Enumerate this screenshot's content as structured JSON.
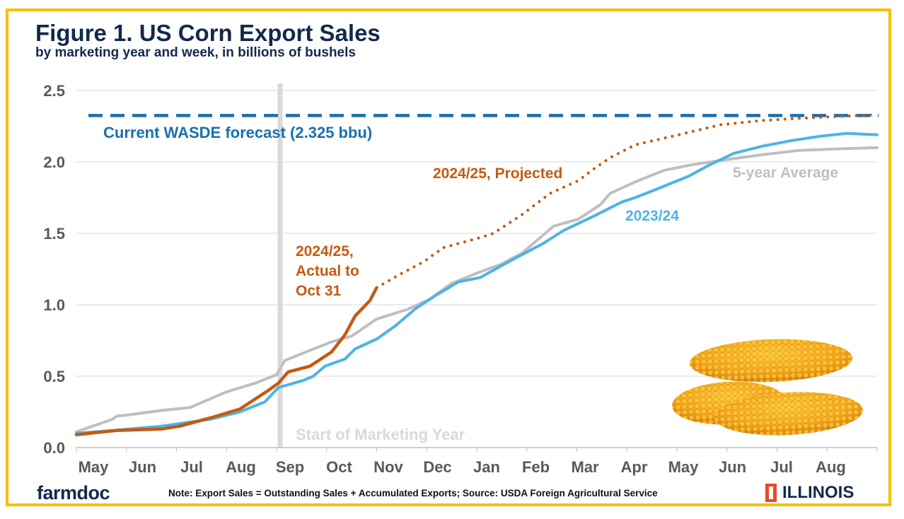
{
  "chart_data": {
    "type": "line",
    "title": "Figure 1. US Corn Export Sales",
    "subtitle": "by marketing year and week, in billions of bushels",
    "ylim": [
      0,
      2.5
    ],
    "yticks": [
      "0.0",
      "0.5",
      "1.0",
      "1.5",
      "2.0",
      "2.5"
    ],
    "xlim": [
      "2024-05-01",
      "2025-08-31"
    ],
    "xticks": [
      "May",
      "Jun",
      "Jul",
      "Aug",
      "Sep",
      "Oct",
      "Nov",
      "Dec",
      "Jan",
      "Feb",
      "Mar",
      "Apr",
      "May",
      "Jun",
      "Jul",
      "Aug"
    ],
    "grid": "horizontal",
    "reference_line": {
      "label": "Current WASDE forecast (2.325 bbu)",
      "value": 2.325,
      "color": "#1a6faf"
    },
    "vertical_marker": {
      "label": "Start of Marketing Year",
      "x": "2024-09-01",
      "color": "#d9d9d9"
    },
    "series": [
      {
        "name": "5-year Average",
        "color": "#bfbfbf",
        "style": "solid",
        "points": [
          [
            "2024-05-01",
            0.11
          ],
          [
            "2024-05-23",
            0.2
          ],
          [
            "2024-05-25",
            0.22
          ],
          [
            "2024-06-03",
            0.23
          ],
          [
            "2024-06-22",
            0.26
          ],
          [
            "2024-07-09",
            0.28
          ],
          [
            "2024-08-01",
            0.39
          ],
          [
            "2024-08-18",
            0.45
          ],
          [
            "2024-08-31",
            0.51
          ],
          [
            "2024-09-06",
            0.61
          ],
          [
            "2024-09-21",
            0.68
          ],
          [
            "2024-10-04",
            0.74
          ],
          [
            "2024-10-16",
            0.78
          ],
          [
            "2024-10-31",
            0.9
          ],
          [
            "2024-11-20",
            0.97
          ],
          [
            "2024-12-03",
            1.04
          ],
          [
            "2024-12-16",
            1.15
          ],
          [
            "2025-01-03",
            1.23
          ],
          [
            "2025-01-15",
            1.28
          ],
          [
            "2025-01-28",
            1.36
          ],
          [
            "2025-02-07",
            1.45
          ],
          [
            "2025-02-17",
            1.55
          ],
          [
            "2025-03-02",
            1.6
          ],
          [
            "2025-03-15",
            1.7
          ],
          [
            "2025-03-21",
            1.78
          ],
          [
            "2025-04-06",
            1.86
          ],
          [
            "2025-04-23",
            1.94
          ],
          [
            "2025-05-10",
            1.98
          ],
          [
            "2025-06-03",
            2.02
          ],
          [
            "2025-06-22",
            2.05
          ],
          [
            "2025-07-14",
            2.08
          ],
          [
            "2025-08-05",
            2.09
          ],
          [
            "2025-08-31",
            2.1
          ]
        ]
      },
      {
        "name": "2023/24",
        "color": "#4db3e6",
        "style": "solid",
        "points": [
          [
            "2024-05-01",
            0.1
          ],
          [
            "2024-05-23",
            0.12
          ],
          [
            "2024-06-22",
            0.15
          ],
          [
            "2024-07-22",
            0.2
          ],
          [
            "2024-08-09",
            0.25
          ],
          [
            "2024-08-24",
            0.32
          ],
          [
            "2024-09-02",
            0.42
          ],
          [
            "2024-09-17",
            0.47
          ],
          [
            "2024-09-23",
            0.5
          ],
          [
            "2024-09-30",
            0.57
          ],
          [
            "2024-10-12",
            0.62
          ],
          [
            "2024-10-18",
            0.69
          ],
          [
            "2024-10-31",
            0.76
          ],
          [
            "2024-11-12",
            0.85
          ],
          [
            "2024-11-24",
            0.97
          ],
          [
            "2024-12-07",
            1.07
          ],
          [
            "2024-12-20",
            1.16
          ],
          [
            "2025-01-03",
            1.19
          ],
          [
            "2025-01-20",
            1.3
          ],
          [
            "2025-02-11",
            1.43
          ],
          [
            "2025-02-23",
            1.52
          ],
          [
            "2025-03-11",
            1.62
          ],
          [
            "2025-03-28",
            1.72
          ],
          [
            "2025-04-06",
            1.75
          ],
          [
            "2025-04-19",
            1.81
          ],
          [
            "2025-05-08",
            1.9
          ],
          [
            "2025-05-19",
            1.97
          ],
          [
            "2025-06-05",
            2.06
          ],
          [
            "2025-06-22",
            2.11
          ],
          [
            "2025-07-10",
            2.15
          ],
          [
            "2025-07-27",
            2.18
          ],
          [
            "2025-08-13",
            2.2
          ],
          [
            "2025-08-31",
            2.19
          ]
        ]
      },
      {
        "name": "2024/25, Actual to Oct 31",
        "color": "#c55a11",
        "style": "solid",
        "points": [
          [
            "2024-05-01",
            0.09
          ],
          [
            "2024-05-25",
            0.12
          ],
          [
            "2024-06-22",
            0.13
          ],
          [
            "2024-07-03",
            0.15
          ],
          [
            "2024-07-22",
            0.21
          ],
          [
            "2024-08-09",
            0.27
          ],
          [
            "2024-08-26",
            0.4
          ],
          [
            "2024-09-02",
            0.45
          ],
          [
            "2024-09-08",
            0.53
          ],
          [
            "2024-09-21",
            0.57
          ],
          [
            "2024-10-04",
            0.67
          ],
          [
            "2024-10-12",
            0.79
          ],
          [
            "2024-10-18",
            0.92
          ],
          [
            "2024-10-27",
            1.03
          ],
          [
            "2024-10-31",
            1.12
          ]
        ]
      },
      {
        "name": "2024/25, Projected",
        "color": "#c55a11",
        "style": "dotted",
        "points": [
          [
            "2024-10-31",
            1.12
          ],
          [
            "2024-11-16",
            1.22
          ],
          [
            "2024-11-29",
            1.3
          ],
          [
            "2024-12-11",
            1.4
          ],
          [
            "2025-01-03",
            1.47
          ],
          [
            "2025-01-11",
            1.5
          ],
          [
            "2025-01-28",
            1.63
          ],
          [
            "2025-02-15",
            1.78
          ],
          [
            "2025-03-02",
            1.87
          ],
          [
            "2025-03-11",
            1.95
          ],
          [
            "2025-03-21",
            2.03
          ],
          [
            "2025-04-06",
            2.12
          ],
          [
            "2025-05-02",
            2.19
          ],
          [
            "2025-05-27",
            2.26
          ],
          [
            "2025-06-22",
            2.29
          ],
          [
            "2025-07-22",
            2.31
          ],
          [
            "2025-08-31",
            2.33
          ]
        ]
      }
    ]
  },
  "footer": {
    "logo": "farmdoc",
    "note": "Note: Export Sales = Outstanding Sales + Accumulated Exports; Source: USDA Foreign Agricultural Service",
    "university": "ILLINOIS"
  },
  "labels": {
    "wasde": "Current WASDE forecast (2.325 bbu)",
    "projected": "2024/25, Projected",
    "actual": [
      "2024/25,",
      "Actual to",
      "Oct 31"
    ],
    "avg": "5-year Average",
    "y2324": "2023/24",
    "start": "Start of Marketing Year"
  }
}
